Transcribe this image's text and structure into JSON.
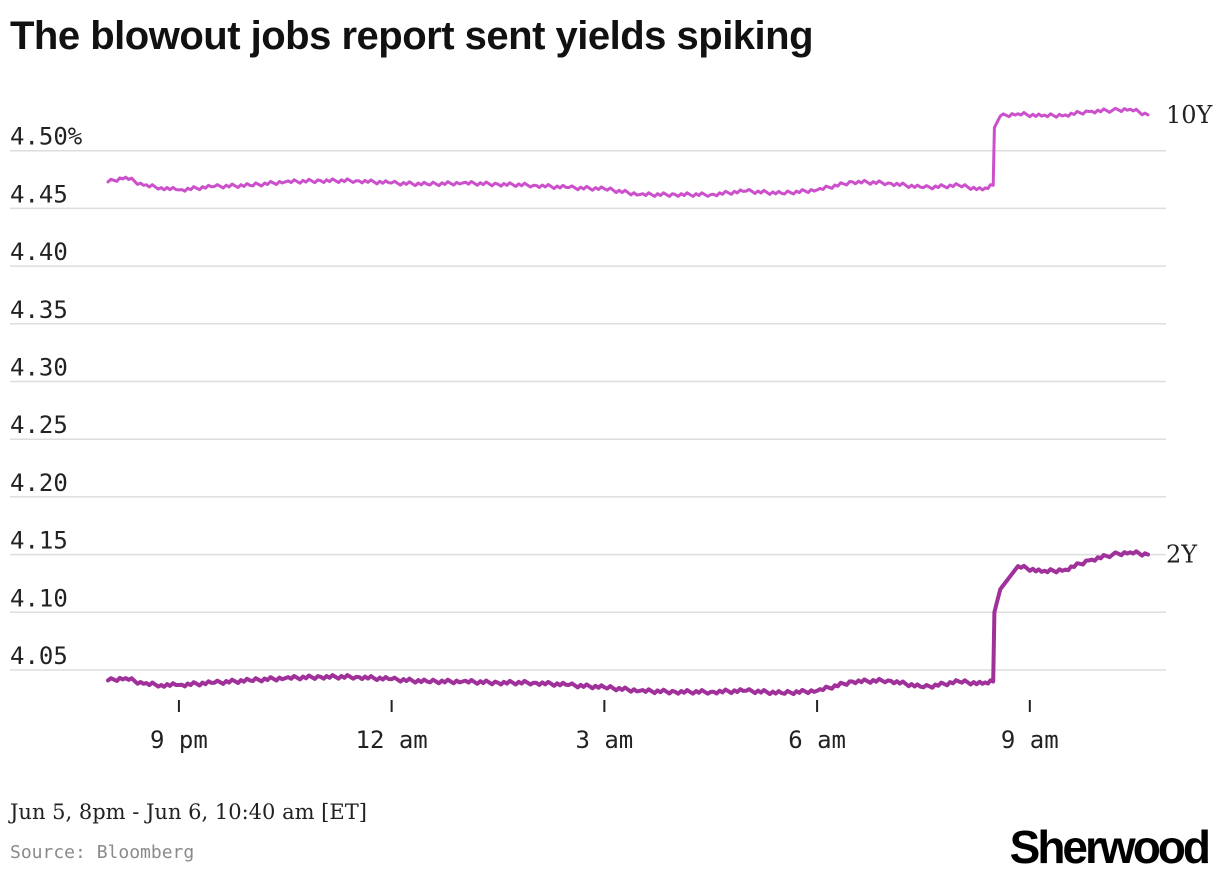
{
  "colors": {
    "ten_year": "#cc4fcc",
    "two_year": "#a0309a",
    "grid": "#dddddd",
    "text": "#222222"
  },
  "note": "Jun 5, 8pm - Jun 6, 10:40 am [ET]",
  "source": "Source: Bloomberg",
  "brand": "Sherwood",
  "chart_data": {
    "type": "line",
    "title": "The blowout jobs report sent yields spiking",
    "xlabel": "",
    "ylabel": "",
    "x_unit": "time (ET), Jun 5 8:00 pm to Jun 6 10:40 am",
    "x_ticks": [
      "9 pm",
      "12 am",
      "3 am",
      "6 am",
      "9 am"
    ],
    "y_ticks": [
      "4.50%",
      "4.45",
      "4.40",
      "4.35",
      "4.30",
      "4.25",
      "4.20",
      "4.15",
      "4.10",
      "4.05"
    ],
    "ylim": [
      4.02,
      4.55
    ],
    "grid": "horizontal",
    "legend": "direct labels at right end of lines",
    "series": [
      {
        "name": "10Y",
        "color": "#cc4fcc",
        "x": [
          "8:00 pm",
          "8:15 pm",
          "8:30 pm",
          "8:45 pm",
          "9:00 pm",
          "9:30 pm",
          "10:00 pm",
          "10:30 pm",
          "11:00 pm",
          "11:30 pm",
          "12:00 am",
          "12:30 am",
          "1:00 am",
          "1:30 am",
          "2:00 am",
          "2:30 am",
          "3:00 am",
          "3:30 am",
          "4:00 am",
          "4:30 am",
          "5:00 am",
          "5:30 am",
          "6:00 am",
          "6:30 am",
          "7:00 am",
          "7:30 am",
          "8:00 am",
          "8:20 am",
          "8:29 am",
          "8:30 am",
          "8:35 am",
          "8:50 am",
          "9:10 am",
          "9:30 am",
          "9:50 am",
          "10:10 am",
          "10:25 am",
          "10:40 am"
        ],
        "values": [
          4.473,
          4.477,
          4.47,
          4.468,
          4.466,
          4.469,
          4.47,
          4.473,
          4.474,
          4.474,
          4.472,
          4.471,
          4.472,
          4.471,
          4.47,
          4.468,
          4.467,
          4.462,
          4.462,
          4.462,
          4.465,
          4.463,
          4.466,
          4.473,
          4.472,
          4.468,
          4.47,
          4.466,
          4.47,
          4.52,
          4.53,
          4.532,
          4.53,
          4.531,
          4.534,
          4.535,
          4.536,
          4.531
        ]
      },
      {
        "name": "2Y",
        "color": "#a0309a",
        "x": [
          "8:00 pm",
          "8:15 pm",
          "8:30 pm",
          "8:45 pm",
          "9:00 pm",
          "9:30 pm",
          "10:00 pm",
          "10:30 pm",
          "11:00 pm",
          "11:30 pm",
          "12:00 am",
          "12:30 am",
          "1:00 am",
          "1:30 am",
          "2:00 am",
          "2:30 am",
          "3:00 am",
          "3:30 am",
          "4:00 am",
          "4:30 am",
          "5:00 am",
          "5:30 am",
          "6:00 am",
          "6:30 am",
          "7:00 am",
          "7:30 am",
          "8:00 am",
          "8:20 am",
          "8:29 am",
          "8:30 am",
          "8:35 am",
          "8:50 am",
          "9:10 am",
          "9:30 am",
          "9:50 am",
          "10:10 am",
          "10:25 am",
          "10:40 am"
        ],
        "values": [
          4.041,
          4.043,
          4.038,
          4.037,
          4.037,
          4.039,
          4.041,
          4.043,
          4.044,
          4.044,
          4.042,
          4.04,
          4.04,
          4.039,
          4.039,
          4.037,
          4.035,
          4.032,
          4.031,
          4.031,
          4.032,
          4.03,
          4.032,
          4.04,
          4.041,
          4.035,
          4.04,
          4.038,
          4.04,
          4.1,
          4.12,
          4.14,
          4.135,
          4.137,
          4.145,
          4.15,
          4.152,
          4.15
        ]
      }
    ]
  }
}
